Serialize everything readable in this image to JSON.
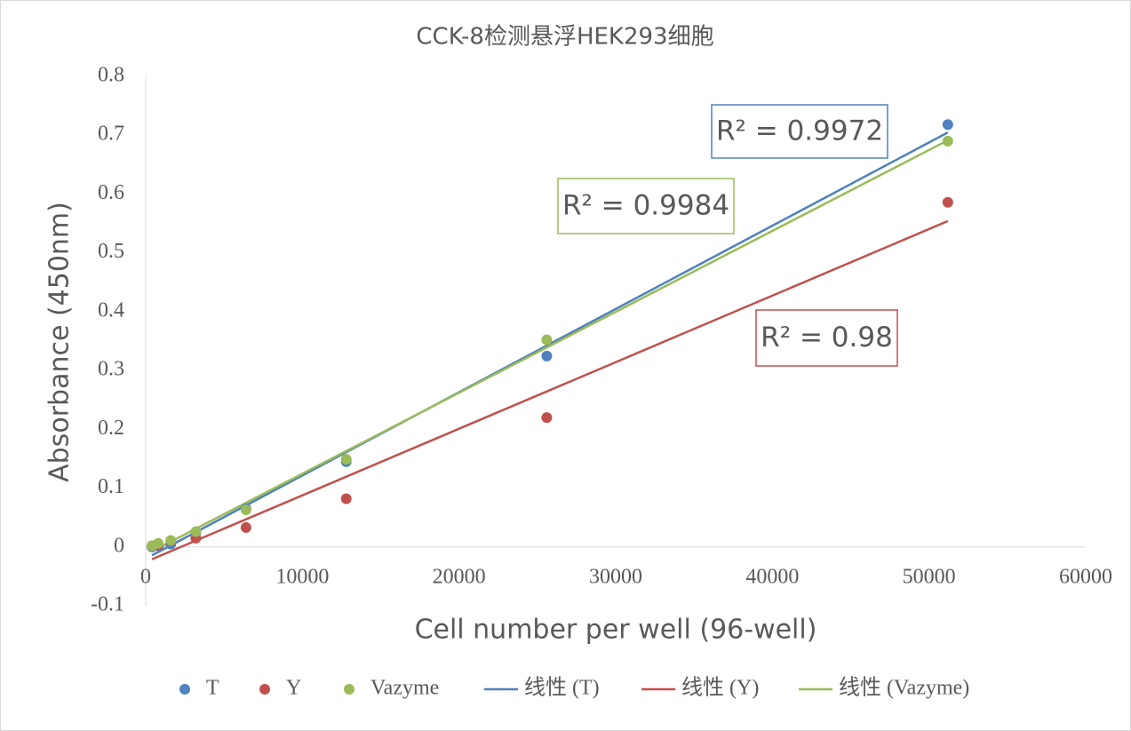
{
  "chart_data": {
    "type": "scatter",
    "title": "CCK-8检测悬浮HEK293细胞",
    "x_label": "Cell number per well (96-well)",
    "y_label": "Absorbance (450nm)",
    "x": [
      400,
      800,
      1600,
      3200,
      6400,
      12800,
      25600,
      51200
    ],
    "series": [
      {
        "name": "T",
        "color": "#4f81bd",
        "values": [
          0.0,
          0.002,
          0.005,
          0.024,
          0.065,
          0.145,
          0.3245,
          0.718
        ]
      },
      {
        "name": "Y",
        "color": "#c0504d",
        "values": [
          0.002,
          0.003,
          0.01,
          0.015,
          0.033,
          0.082,
          0.22,
          0.586
        ]
      },
      {
        "name": "Vazyme",
        "color": "#9bbb59",
        "values": [
          0.002,
          0.006,
          0.011,
          0.026,
          0.063,
          0.149,
          0.352,
          0.69
        ]
      }
    ],
    "trendlines": [
      {
        "name": "线性 (T)",
        "color": "#4f81bd",
        "r2_label": "R² = 0.9972"
      },
      {
        "name": "线性 (Y)",
        "color": "#c0504d",
        "r2_label": "R² = 0.98"
      },
      {
        "name": "线性 (Vazyme)",
        "color": "#9bbb59",
        "r2_label": "R² = 0.9984"
      }
    ],
    "xlim": [
      0,
      60000
    ],
    "xticks": [
      0,
      10000,
      20000,
      30000,
      40000,
      50000,
      60000
    ],
    "ylim": [
      -0.1,
      0.8
    ],
    "yticks": [
      -0.1,
      0,
      0.1,
      0.2,
      0.3,
      0.4,
      0.5,
      0.6,
      0.7,
      0.8
    ],
    "grid": false,
    "legend": "bottom"
  }
}
